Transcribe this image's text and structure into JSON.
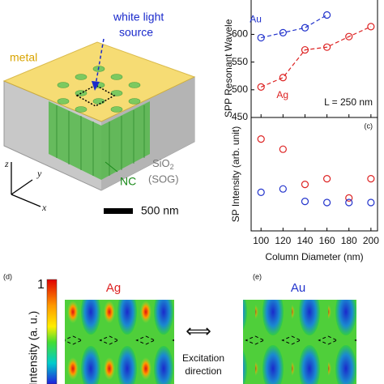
{
  "figure": {
    "illustration": {
      "light_source": [
        "white light",
        "source"
      ],
      "metal": "metal",
      "substrate": [
        "SiO",
        "2",
        "(SOG)"
      ],
      "nc": "NC",
      "axes": [
        "z",
        "y",
        "x"
      ],
      "scale_bar": "500 nm"
    },
    "maps": {
      "d_label": "(d)",
      "e_label": "(e)",
      "ag": "Ag",
      "au": "Au",
      "colorbar_max": "1",
      "colorbar_label": "Intensity (a. u.)",
      "excitation": [
        "Excitation",
        "direction"
      ]
    }
  },
  "chart_data": [
    {
      "type": "scatter",
      "ylabel": "SPP Resonant Wavele",
      "ylim": [
        450,
        665
      ],
      "yticks": [
        450,
        500,
        550,
        600
      ],
      "xlim": [
        91,
        206
      ],
      "xticks": [
        100,
        120,
        140,
        160,
        180,
        200
      ],
      "fit": "dashed",
      "series": [
        {
          "name": "Au",
          "color": "#2233cc",
          "x": [
            100,
            120,
            140,
            160
          ],
          "values": [
            594,
            603,
            612,
            635
          ]
        },
        {
          "name": "Ag",
          "color": "#dd2222",
          "x": [
            100,
            120,
            140,
            160,
            180,
            200
          ],
          "values": [
            505,
            522,
            572,
            577,
            596,
            614
          ]
        }
      ],
      "annotation": "L = 250 nm"
    },
    {
      "type": "scatter",
      "panel_label": "(c)",
      "ylabel": "SP Intensity (arb. unit)",
      "xlabel": "Column Diameter (nm)",
      "ylim": [
        0,
        10
      ],
      "xlim": [
        91,
        206
      ],
      "xticks": [
        100,
        120,
        140,
        160,
        180,
        200
      ],
      "series": [
        {
          "color": "#dd2222",
          "x": [
            100,
            120,
            140,
            160,
            180,
            200
          ],
          "values": [
            8.1,
            7.2,
            4.1,
            4.6,
            2.9,
            4.6
          ]
        },
        {
          "color": "#2233cc",
          "x": [
            100,
            120,
            140,
            160,
            180,
            200
          ],
          "values": [
            3.4,
            3.7,
            2.6,
            2.5,
            2.5,
            2.5
          ]
        }
      ]
    }
  ]
}
